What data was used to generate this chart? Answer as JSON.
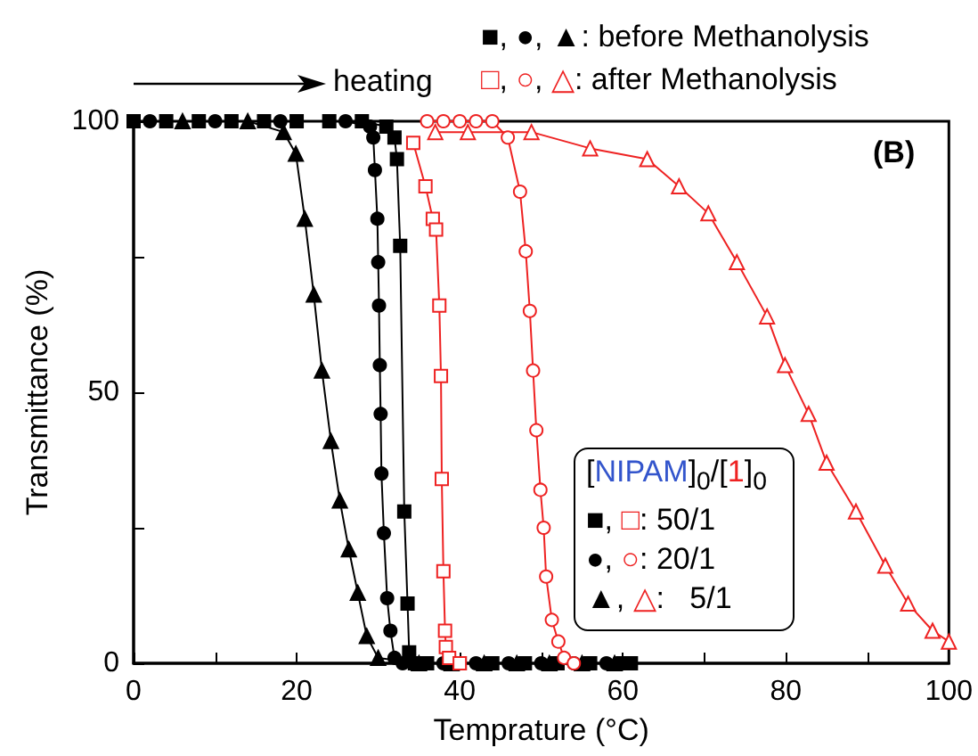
{
  "chart_data": {
    "type": "line",
    "xlabel": "Temprature (°C)",
    "ylabel": "Transmittance (%)",
    "annotations": [
      "heating",
      "■, ●, ▲: before Methanolysis",
      "□, ○, △: after Methanolysis",
      "(B)",
      "[NIPAM]$_{0}$/[1]$_{0}$",
      "■, □: 50/1",
      "●, ○: 20/1",
      "▲, △:   5/1"
    ],
    "xlim": [
      0,
      100
    ],
    "xticks": [
      0,
      {
        "value": 10,
        "label": null
      },
      20,
      {
        "value": 30,
        "label": null
      },
      40,
      {
        "value": 50,
        "label": null
      },
      60,
      {
        "value": 70,
        "label": null
      },
      80,
      {
        "value": 90,
        "label": null
      },
      100
    ],
    "ylim": [
      0,
      100
    ],
    "yticks": [
      0,
      {
        "value": 25,
        "label": null
      },
      50,
      {
        "value": 75,
        "label": null
      },
      100
    ],
    "series": [
      {
        "color": "#000000",
        "marker": "square",
        "x": [
          0,
          4,
          8,
          12,
          16,
          20,
          24,
          28,
          31,
          32,
          32.3,
          32.7,
          33.2,
          33.6,
          33.8,
          34.5,
          36,
          40,
          44,
          48,
          52,
          56,
          60,
          61
        ],
        "values": [
          100,
          100,
          100,
          100,
          100,
          100,
          100,
          100,
          99,
          97,
          93,
          77,
          28,
          11,
          2,
          0,
          0,
          0,
          0,
          0,
          0,
          0,
          0,
          0
        ]
      },
      {
        "color": "#000000",
        "marker": "circle",
        "x": [
          2,
          10,
          18,
          26,
          29,
          29.4,
          29.6,
          29.9,
          30.0,
          30.1,
          30.2,
          30.3,
          30.4,
          30.7,
          31.1,
          31.5,
          32,
          33,
          38,
          42,
          46,
          50,
          54,
          58
        ],
        "values": [
          100,
          100,
          100,
          100,
          99,
          97,
          91,
          82,
          74,
          66,
          55,
          46,
          35,
          24,
          12,
          6,
          1,
          0,
          0,
          0,
          0,
          0,
          0,
          0
        ]
      },
      {
        "color": "#000000",
        "marker": "triangle",
        "x": [
          6,
          14,
          18.4,
          19.9,
          21,
          22.1,
          23.1,
          24.2,
          25.3,
          26.4,
          27.5,
          28.6,
          30,
          35,
          39,
          43,
          47,
          51,
          55,
          59
        ],
        "values": [
          100,
          100,
          98,
          94,
          82,
          68,
          54,
          41,
          30,
          21,
          13,
          5,
          1,
          0,
          0,
          0,
          0,
          0,
          0,
          0
        ]
      },
      {
        "color": "#ee2222",
        "marker": "square",
        "x": [
          34.3,
          35.8,
          36.7,
          37.1,
          37.5,
          37.7,
          37.8,
          38.0,
          38.2,
          38.3,
          38.7,
          40
        ],
        "values": [
          96,
          88,
          82,
          80,
          66,
          53,
          34,
          17,
          6,
          3,
          1,
          0
        ]
      },
      {
        "color": "#ee2222",
        "marker": "circle",
        "x": [
          36,
          38,
          40,
          42,
          44,
          45.9,
          47.4,
          48.1,
          48.6,
          49.0,
          49.4,
          49.9,
          50.3,
          50.6,
          51.3,
          52.1,
          52.8,
          54
        ],
        "values": [
          100,
          100,
          100,
          100,
          100,
          97,
          87,
          76,
          65,
          54,
          43,
          32,
          25,
          16,
          8,
          4,
          1,
          0
        ]
      },
      {
        "color": "#ee2222",
        "marker": "triangle",
        "x": [
          37,
          41,
          48.8,
          56,
          63,
          66.9,
          70.5,
          74,
          77.7,
          79.9,
          82.8,
          85,
          88.6,
          92.2,
          95,
          98,
          100
        ],
        "values": [
          98,
          98,
          98,
          95,
          93,
          88,
          83,
          74,
          64,
          55,
          46,
          37,
          28,
          18,
          11,
          6,
          4
        ]
      }
    ]
  }
}
